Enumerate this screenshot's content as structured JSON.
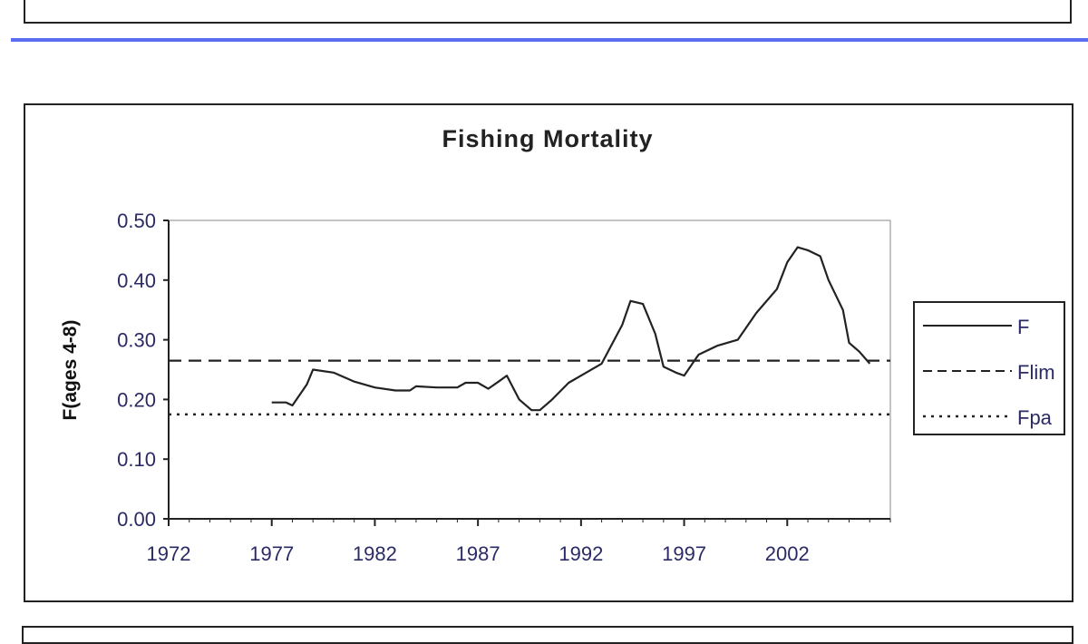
{
  "chart_data": {
    "type": "line",
    "title": "Fishing Mortality",
    "xlabel": "",
    "ylabel": "F(ages 4-8)",
    "xlim": [
      1972,
      2007
    ],
    "ylim": [
      0,
      0.5
    ],
    "x_ticks": [
      "1972",
      "1977",
      "1982",
      "1987",
      "1992",
      "1997",
      "2002"
    ],
    "y_ticks": [
      "0.00",
      "0.10",
      "0.20",
      "0.30",
      "0.40",
      "0.50"
    ],
    "legend_position": "right",
    "grid": false,
    "series": [
      {
        "name": "F",
        "style": "solid",
        "x": [
          1977,
          1977.7,
          1978,
          1978.7,
          1979,
          1980,
          1981,
          1982,
          1983,
          1983.7,
          1984,
          1985,
          1986,
          1986.4,
          1987,
          1987.5,
          1988,
          1988.4,
          1989,
          1989.6,
          1990,
          1990.6,
          1991.4,
          1992,
          1993,
          1994,
          1994.4,
          1995,
          1995.6,
          1996,
          1996.6,
          1997,
          1997.7,
          1998.6,
          1999.6,
          2000.5,
          2001.5,
          2002,
          2002.5,
          2003,
          2003.6,
          2004,
          2004.7,
          2005,
          2005.5,
          2006
        ],
        "y": [
          0.195,
          0.195,
          0.19,
          0.225,
          0.25,
          0.245,
          0.23,
          0.22,
          0.215,
          0.215,
          0.222,
          0.22,
          0.22,
          0.228,
          0.228,
          0.218,
          0.23,
          0.24,
          0.2,
          0.182,
          0.182,
          0.2,
          0.228,
          0.24,
          0.26,
          0.325,
          0.365,
          0.36,
          0.31,
          0.255,
          0.245,
          0.24,
          0.275,
          0.29,
          0.3,
          0.345,
          0.385,
          0.43,
          0.455,
          0.45,
          0.44,
          0.4,
          0.35,
          0.295,
          0.28,
          0.26
        ]
      },
      {
        "name": "Flim",
        "style": "dashed",
        "x": [
          1972,
          2007
        ],
        "y": [
          0.265,
          0.265
        ]
      },
      {
        "name": "Fpa",
        "style": "dotted",
        "x": [
          1972,
          2007
        ],
        "y": [
          0.175,
          0.175
        ]
      }
    ]
  }
}
